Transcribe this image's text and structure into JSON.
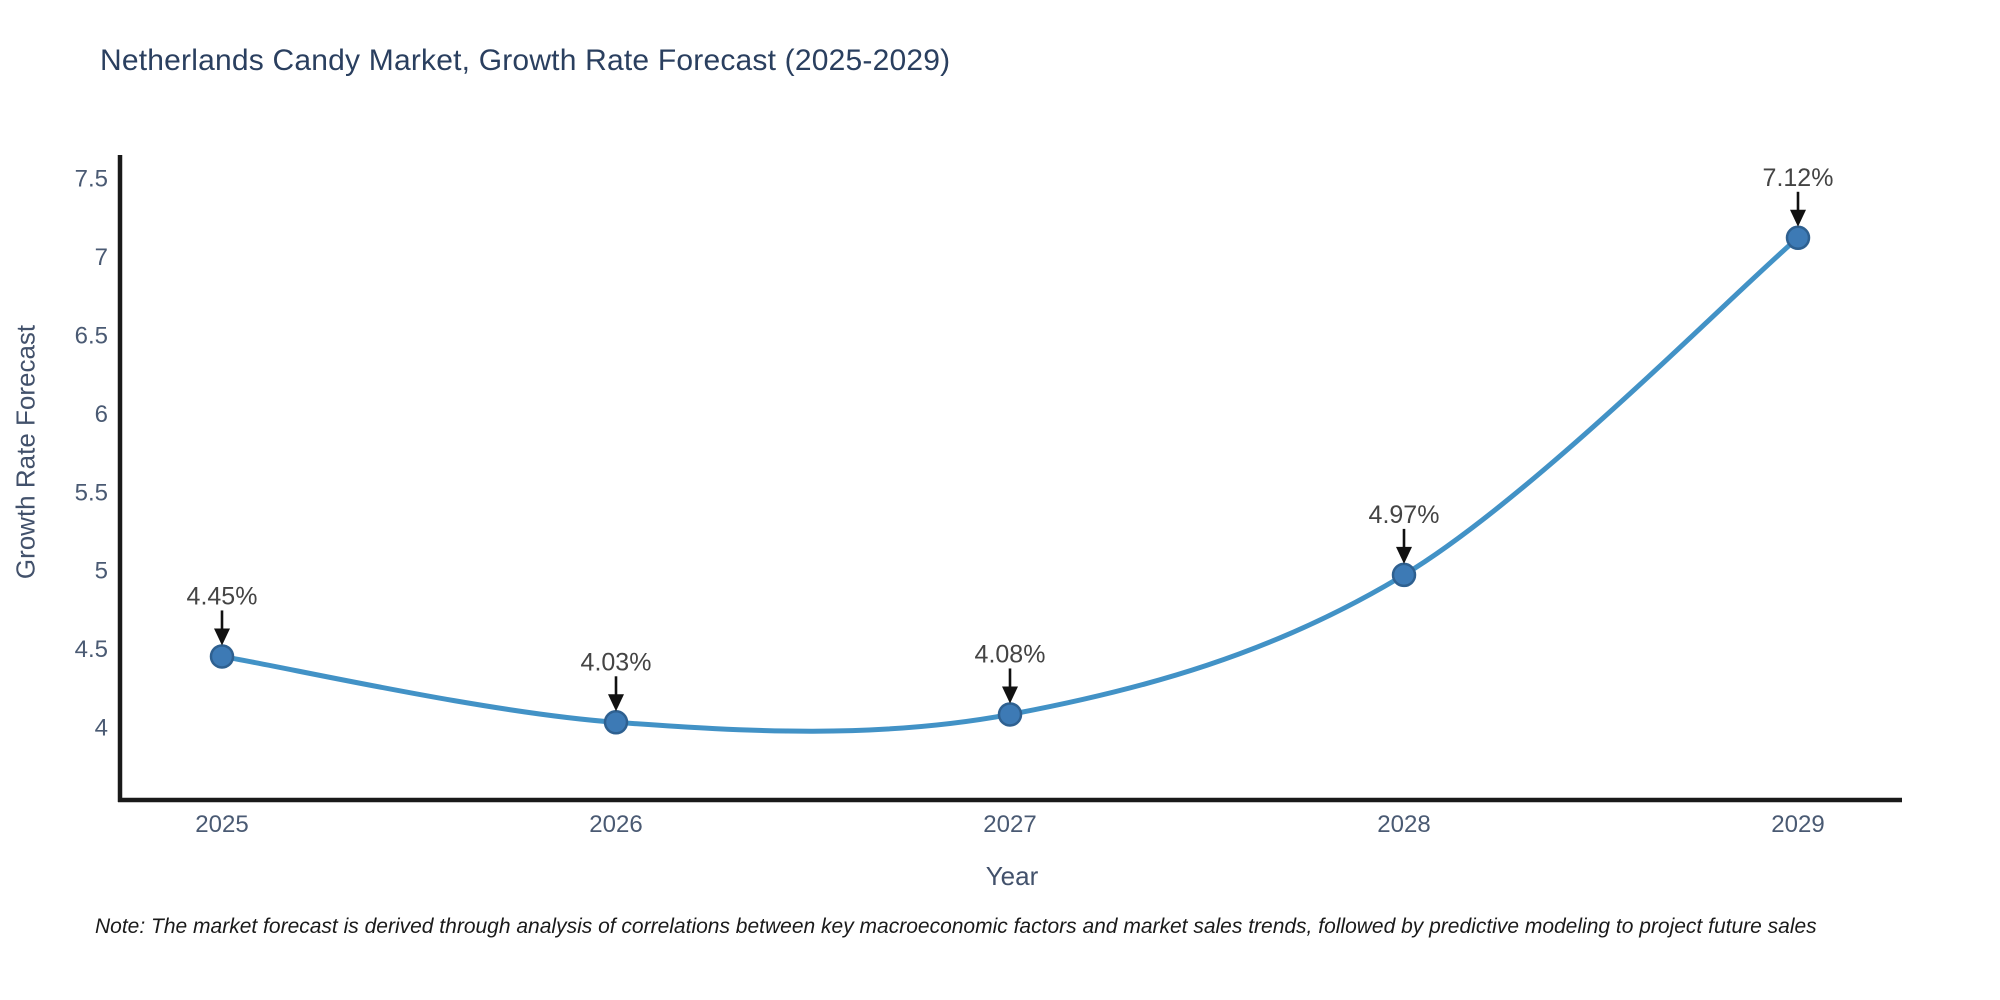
{
  "chart_data": {
    "type": "line",
    "line_shape": "spline",
    "title": "Netherlands Candy Market, Growth Rate Forecast (2025-2029)",
    "xlabel": "Year",
    "ylabel": "Growth Rate Forecast",
    "categories": [
      "2025",
      "2026",
      "2027",
      "2028",
      "2029"
    ],
    "values": [
      4.45,
      4.03,
      4.08,
      4.97,
      7.12
    ],
    "point_labels": [
      "4.45%",
      "4.03%",
      "4.08%",
      "4.97%",
      "7.12%"
    ],
    "ytick_values": [
      4,
      4.5,
      5,
      5.5,
      6,
      6.5,
      7,
      7.5
    ],
    "ytick_labels": [
      "4",
      "4.5",
      "5",
      "5.5",
      "6",
      "6.5",
      "7",
      "7.5"
    ],
    "ylim": [
      3.53,
      7.66
    ],
    "grid": false,
    "legend": "none",
    "note": "Note: The market forecast is derived through analysis of correlations between key macroeconomic factors and market sales trends, followed by predictive modeling to project future sales",
    "colors": {
      "line": "#4292c6",
      "marker": "#3d7ab5",
      "marker_border": "#2e6090",
      "title": "#2a3f5f",
      "axis_line": "#1a1a1a",
      "tick_label": "#4a5a73",
      "axis_title": "#42516b",
      "annotation_text": "#444444",
      "arrow": "#111111",
      "note_text": "#1a1a1a"
    }
  }
}
